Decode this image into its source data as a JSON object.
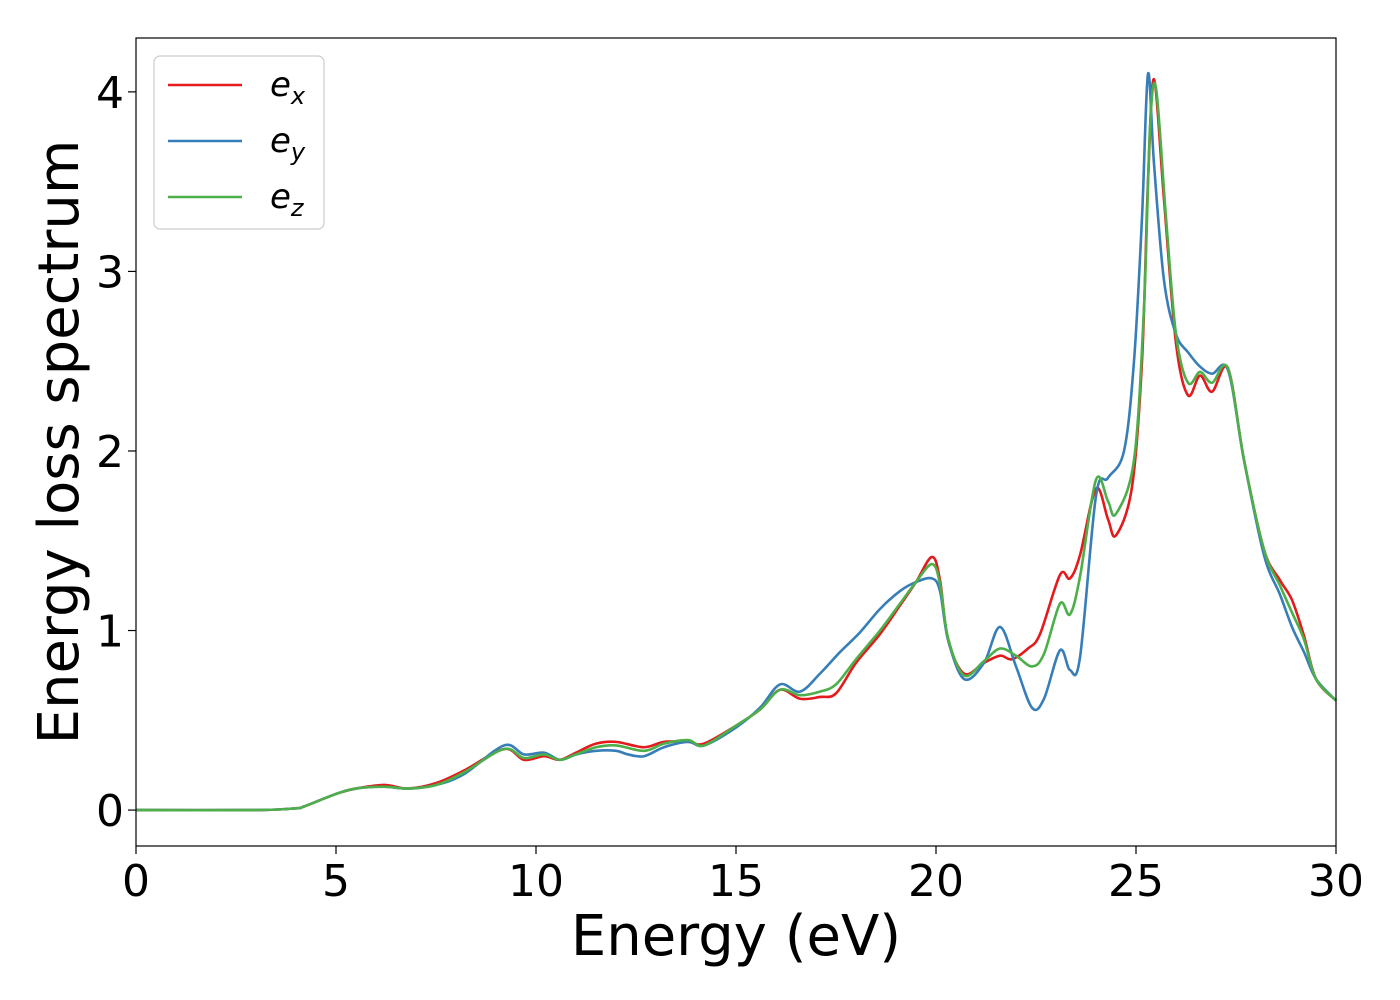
{
  "chart_data": {
    "type": "line",
    "xlabel": "Energy (eV)",
    "ylabel": "Energy loss spectrum",
    "xlim": [
      0,
      30
    ],
    "ylim": [
      -0.2,
      4.3
    ],
    "xticks": [
      0,
      5,
      10,
      15,
      20,
      25,
      30
    ],
    "xtick_labels": [
      "0",
      "5",
      "10",
      "15",
      "20",
      "25",
      "30"
    ],
    "yticks": [
      0,
      1,
      2,
      3,
      4
    ],
    "ytick_labels": [
      "0",
      "1",
      "2",
      "3",
      "4"
    ],
    "grid": false,
    "legend_position": "top-left",
    "series": [
      {
        "name": "e",
        "subscript": "x",
        "color": "#e41a1c",
        "x": [
          0,
          3,
          4,
          4.2,
          5,
          5.5,
          6.2,
          6.8,
          7.5,
          8.2,
          9.2,
          9.7,
          10.2,
          10.6,
          11,
          11.5,
          12,
          12.7,
          13.2,
          13.8,
          14.2,
          15,
          15.6,
          16.1,
          16.6,
          17.1,
          17.5,
          18,
          18.6,
          19.1,
          19.5,
          19.9,
          20.1,
          20.3,
          20.7,
          21.2,
          21.6,
          21.9,
          22.3,
          22.6,
          23.1,
          23.35,
          23.6,
          24,
          24.3,
          24.5,
          24.9,
          25.15,
          25.3,
          25.45,
          25.7,
          26,
          26.3,
          26.6,
          26.9,
          27.3,
          27.7,
          28.2,
          28.6,
          28.9,
          29.2,
          29.5,
          30
        ],
        "y": [
          0,
          0,
          0.01,
          0.02,
          0.09,
          0.12,
          0.14,
          0.12,
          0.15,
          0.22,
          0.34,
          0.28,
          0.3,
          0.28,
          0.32,
          0.37,
          0.38,
          0.35,
          0.38,
          0.38,
          0.37,
          0.47,
          0.56,
          0.67,
          0.62,
          0.63,
          0.65,
          0.82,
          0.98,
          1.14,
          1.27,
          1.41,
          1.28,
          0.95,
          0.76,
          0.82,
          0.86,
          0.84,
          0.9,
          0.98,
          1.31,
          1.29,
          1.42,
          1.79,
          1.62,
          1.53,
          1.8,
          2.5,
          3.5,
          4.07,
          3.4,
          2.6,
          2.31,
          2.42,
          2.33,
          2.46,
          1.95,
          1.45,
          1.28,
          1.17,
          0.97,
          0.73,
          0.61
        ]
      },
      {
        "name": "e",
        "subscript": "y",
        "color": "#377eb8",
        "x": [
          0,
          3,
          4,
          4.2,
          5,
          5.5,
          6.2,
          6.8,
          7.5,
          8.2,
          9.2,
          9.7,
          10.2,
          10.6,
          11,
          11.5,
          12,
          12.3,
          12.7,
          13.2,
          13.8,
          14.2,
          15,
          15.6,
          16.1,
          16.6,
          17.1,
          17.6,
          18.1,
          18.6,
          19.1,
          19.5,
          19.9,
          20.1,
          20.3,
          20.7,
          21.2,
          21.6,
          22,
          22.4,
          22.7,
          23.1,
          23.35,
          23.6,
          24,
          24.3,
          24.7,
          24.95,
          25.15,
          25.3,
          25.45,
          25.7,
          26,
          26.3,
          26.6,
          26.9,
          27.3,
          27.7,
          28.2,
          28.6,
          28.9,
          29.2,
          29.5,
          30
        ],
        "y": [
          0,
          0,
          0.01,
          0.02,
          0.09,
          0.12,
          0.13,
          0.12,
          0.14,
          0.2,
          0.36,
          0.31,
          0.32,
          0.28,
          0.31,
          0.33,
          0.33,
          0.31,
          0.3,
          0.35,
          0.38,
          0.36,
          0.46,
          0.57,
          0.7,
          0.66,
          0.76,
          0.88,
          0.99,
          1.12,
          1.22,
          1.27,
          1.29,
          1.22,
          0.95,
          0.73,
          0.82,
          1.02,
          0.8,
          0.57,
          0.62,
          0.89,
          0.78,
          0.85,
          1.75,
          1.85,
          2.0,
          2.5,
          3.3,
          4.1,
          3.6,
          2.95,
          2.65,
          2.55,
          2.47,
          2.43,
          2.45,
          1.95,
          1.42,
          1.2,
          1.02,
          0.88,
          0.73,
          0.61
        ]
      },
      {
        "name": "e",
        "subscript": "z",
        "color": "#4daf4a",
        "x": [
          0,
          3,
          4,
          4.2,
          5,
          5.5,
          6.2,
          6.8,
          7.5,
          8.2,
          9.2,
          9.7,
          10.2,
          10.6,
          11,
          11.5,
          12,
          12.7,
          13.2,
          13.8,
          14.2,
          15,
          15.6,
          16.1,
          16.6,
          17.1,
          17.5,
          18,
          18.6,
          19.1,
          19.5,
          19.9,
          20.1,
          20.3,
          20.7,
          21.2,
          21.6,
          22,
          22.4,
          22.7,
          23.1,
          23.35,
          23.6,
          24,
          24.3,
          24.5,
          24.95,
          25.2,
          25.35,
          25.5,
          25.75,
          26,
          26.3,
          26.6,
          26.9,
          27.3,
          27.7,
          28.2,
          28.6,
          28.9,
          29.2,
          29.5,
          30
        ],
        "y": [
          0,
          0,
          0.01,
          0.02,
          0.09,
          0.12,
          0.13,
          0.12,
          0.14,
          0.21,
          0.34,
          0.29,
          0.31,
          0.28,
          0.31,
          0.35,
          0.36,
          0.33,
          0.37,
          0.39,
          0.36,
          0.47,
          0.56,
          0.67,
          0.64,
          0.66,
          0.7,
          0.84,
          1.0,
          1.15,
          1.27,
          1.37,
          1.26,
          0.96,
          0.75,
          0.83,
          0.9,
          0.86,
          0.8,
          0.87,
          1.15,
          1.09,
          1.3,
          1.84,
          1.72,
          1.65,
          1.95,
          2.8,
          3.8,
          4.02,
          3.3,
          2.65,
          2.38,
          2.44,
          2.38,
          2.46,
          1.95,
          1.45,
          1.25,
          1.1,
          0.95,
          0.73,
          0.61
        ]
      }
    ]
  }
}
